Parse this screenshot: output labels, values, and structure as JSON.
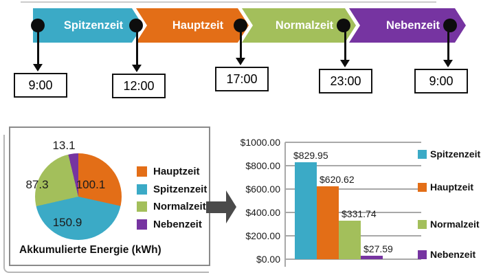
{
  "timeline": {
    "phases": [
      {
        "label": "Spitzenzeit",
        "color": "#3baac6"
      },
      {
        "label": "Hauptzeit",
        "color": "#e36e17"
      },
      {
        "label": "Normalzeit",
        "color": "#a3bf5b"
      },
      {
        "label": "Nebenzeit",
        "color": "#7634a1"
      }
    ],
    "times": [
      "9:00",
      "12:00",
      "17:00",
      "23:00",
      "9:00"
    ]
  },
  "chart_data": [
    {
      "type": "pie",
      "title": "Akkumulierte Energie (kWh)",
      "slices": [
        {
          "label": "Hauptzeit",
          "value": 100.1,
          "color": "#e36e17"
        },
        {
          "label": "Spitzenzeit",
          "value": 150.9,
          "color": "#3baac6"
        },
        {
          "label": "Normalzeit",
          "value": 87.3,
          "color": "#a3bf5b"
        },
        {
          "label": "Nebenzeit",
          "value": 13.1,
          "color": "#7634a1"
        }
      ],
      "legend": [
        "Hauptzeit",
        "Spitzenzeit",
        "Normalzeit",
        "Nebenzeit"
      ],
      "start_angle_deg": 0,
      "direction": "clockwise"
    },
    {
      "type": "bar",
      "categories": [
        "Spitzenzeit",
        "Hauptzeit",
        "Normalzeit",
        "Nebenzeit"
      ],
      "values": [
        829.95,
        620.62,
        331.74,
        27.59
      ],
      "value_labels": [
        "$829.95",
        "$620.62",
        "$331.74",
        "$27.59"
      ],
      "colors": [
        "#3baac6",
        "#e36e17",
        "#a3bf5b",
        "#7634a1"
      ],
      "ylim": [
        0,
        1000
      ],
      "ytick_labels": [
        "$1000.00",
        "$800.00",
        "$600.00",
        "$400.00",
        "$200.00",
        "$0.00"
      ],
      "grid": true,
      "legend_position": "right"
    }
  ]
}
